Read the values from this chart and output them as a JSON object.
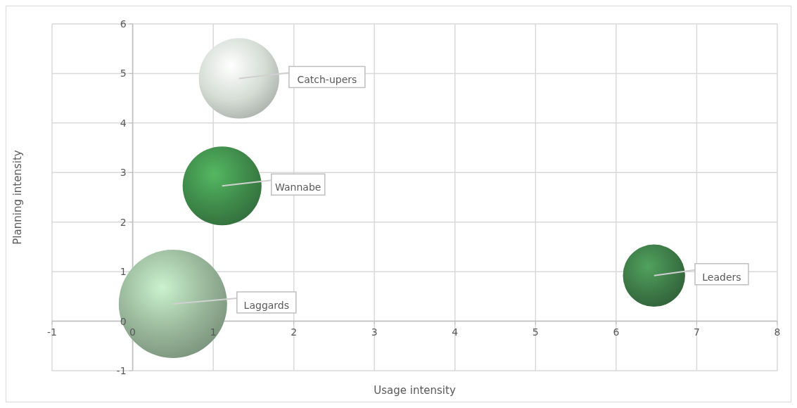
{
  "chart_data": {
    "type": "bubble",
    "xlabel": "Usage intensity",
    "ylabel": "Planning intensity",
    "xlim": [
      -1,
      8
    ],
    "ylim": [
      -1,
      6
    ],
    "xticks": [
      -1,
      0,
      1,
      2,
      3,
      4,
      5,
      6,
      7,
      8
    ],
    "yticks": [
      -1,
      0,
      1,
      2,
      3,
      4,
      5,
      6
    ],
    "grid": true,
    "series": [
      {
        "name": "Catch-upers",
        "color": "#d5ddd5",
        "x": [
          1.32
        ],
        "values": [
          4.9
        ],
        "sizes": [
          0.55
        ]
      },
      {
        "name": "Wannabe",
        "color": "#3f8a4a",
        "x": [
          1.11
        ],
        "values": [
          2.73
        ],
        "sizes": [
          0.53
        ]
      },
      {
        "name": "Laggards",
        "color": "#98b69a",
        "x": [
          0.5
        ],
        "values": [
          0.35
        ],
        "sizes": [
          1
        ]
      },
      {
        "name": "Leaders",
        "color": "#3d7a47",
        "x": [
          6.47
        ],
        "values": [
          0.92
        ],
        "sizes": [
          0.33
        ]
      }
    ]
  }
}
